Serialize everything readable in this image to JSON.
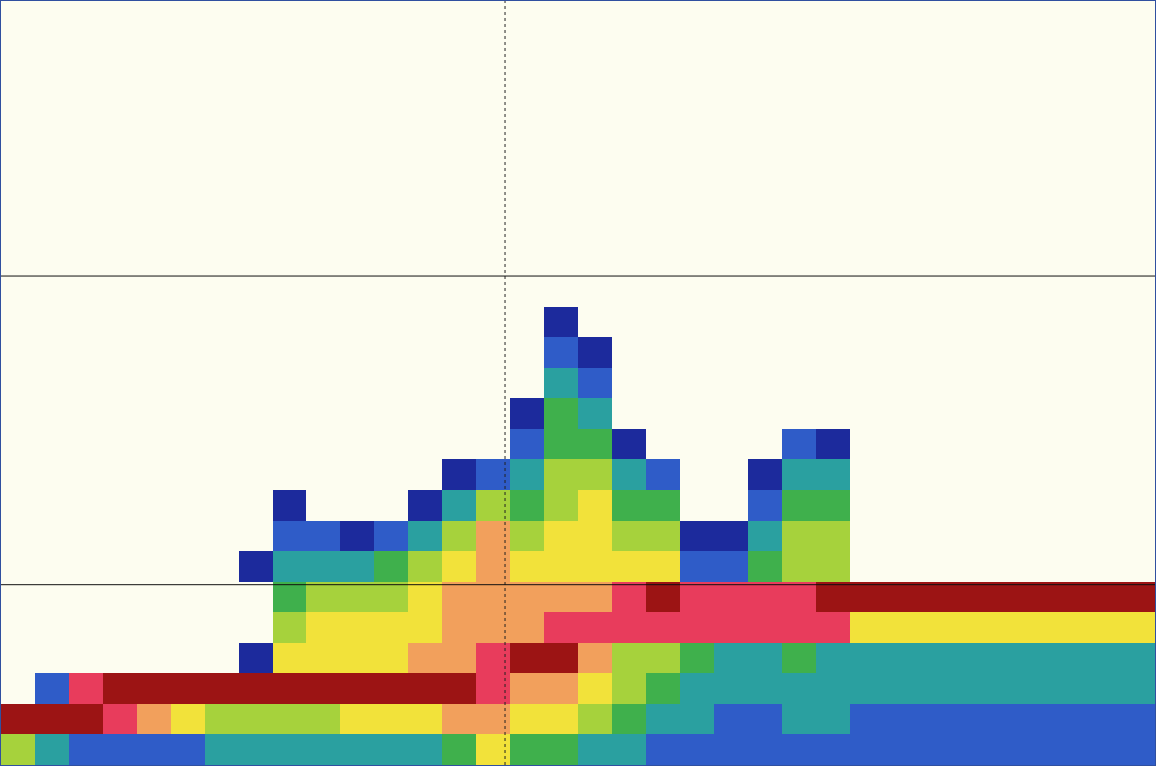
{
  "chart_data": {
    "type": "heatmap",
    "tick_labels": false,
    "grid": true,
    "x": [
      0.5,
      1.5,
      2.5,
      3.5,
      4.5,
      5.5,
      6.5,
      7.5,
      8.5,
      9.5,
      10.5,
      11.5,
      12.5,
      13.5,
      14.5,
      15.5,
      16.5,
      17.5,
      18.5,
      19.5,
      20.5,
      21.5,
      22.5,
      23.5,
      24.5,
      25.5,
      26.5,
      27.5,
      28.5,
      29.5,
      30.5,
      31.5,
      32.5,
      33.5
    ],
    "y": [
      0.5,
      1.5,
      2.5,
      3.5,
      4.5,
      5.5,
      6.5,
      7.5,
      8.5,
      9.5,
      10.5,
      11.5,
      12.5,
      13.5,
      14.5,
      15.5,
      16.5,
      17.5,
      18.5,
      19.5,
      20.5,
      21.5,
      22.5,
      23.5,
      24.5
    ],
    "xlim": [
      0,
      34
    ],
    "ylim": [
      25,
      0
    ],
    "xticks": [
      14.85
    ],
    "yticks": [
      9,
      19.1
    ],
    "zlim": [
      0,
      9
    ],
    "cells": [
      [
        0,
        0,
        0,
        0,
        0,
        0,
        0,
        0,
        0,
        0,
        0,
        0,
        0,
        0,
        0,
        0,
        0,
        0,
        0,
        0,
        0,
        0,
        0,
        0,
        0,
        0,
        0,
        0,
        0,
        0,
        0,
        0,
        0,
        0
      ],
      [
        0,
        0,
        0,
        0,
        0,
        0,
        0,
        0,
        0,
        0,
        0,
        0,
        0,
        0,
        0,
        0,
        0,
        0,
        0,
        0,
        0,
        0,
        0,
        0,
        0,
        0,
        0,
        0,
        0,
        0,
        0,
        0,
        0,
        0
      ],
      [
        0,
        0,
        0,
        0,
        0,
        0,
        0,
        0,
        0,
        0,
        0,
        0,
        0,
        0,
        0,
        0,
        0,
        0,
        0,
        0,
        0,
        0,
        0,
        0,
        0,
        0,
        0,
        0,
        0,
        0,
        0,
        0,
        0,
        0
      ],
      [
        0,
        0,
        0,
        0,
        0,
        0,
        0,
        0,
        0,
        0,
        0,
        0,
        0,
        0,
        0,
        0,
        0,
        0,
        0,
        0,
        0,
        0,
        0,
        0,
        0,
        0,
        0,
        0,
        0,
        0,
        0,
        0,
        0,
        0
      ],
      [
        0,
        0,
        0,
        0,
        0,
        0,
        0,
        0,
        0,
        0,
        0,
        0,
        0,
        0,
        0,
        0,
        0,
        0,
        0,
        0,
        0,
        0,
        0,
        0,
        0,
        0,
        0,
        0,
        0,
        0,
        0,
        0,
        0,
        0
      ],
      [
        0,
        0,
        0,
        0,
        0,
        0,
        0,
        0,
        0,
        0,
        0,
        0,
        0,
        0,
        0,
        0,
        0,
        0,
        0,
        0,
        0,
        0,
        0,
        0,
        0,
        0,
        0,
        0,
        0,
        0,
        0,
        0,
        0,
        0
      ],
      [
        0,
        0,
        0,
        0,
        0,
        0,
        0,
        0,
        0,
        0,
        0,
        0,
        0,
        0,
        0,
        0,
        0,
        0,
        0,
        0,
        0,
        0,
        0,
        0,
        0,
        0,
        0,
        0,
        0,
        0,
        0,
        0,
        0,
        0
      ],
      [
        0,
        0,
        0,
        0,
        0,
        0,
        0,
        0,
        0,
        0,
        0,
        0,
        0,
        0,
        0,
        0,
        0,
        0,
        0,
        0,
        0,
        0,
        0,
        0,
        0,
        0,
        0,
        0,
        0,
        0,
        0,
        0,
        0,
        0
      ],
      [
        0,
        0,
        0,
        0,
        0,
        0,
        0,
        0,
        0,
        0,
        0,
        0,
        0,
        0,
        0,
        0,
        0,
        0,
        0,
        0,
        0,
        0,
        0,
        0,
        0,
        0,
        0,
        0,
        0,
        0,
        0,
        0,
        0,
        0
      ],
      [
        0,
        0,
        0,
        0,
        0,
        0,
        0,
        0,
        0,
        0,
        0,
        0,
        0,
        0,
        0,
        0,
        0,
        0,
        0,
        0,
        0,
        0,
        0,
        0,
        0,
        0,
        0,
        0,
        0,
        0,
        0,
        0,
        0,
        0
      ],
      [
        0,
        0,
        0,
        0,
        0,
        0,
        0,
        0,
        0,
        0,
        0,
        0,
        0,
        0,
        0,
        0,
        1,
        0,
        0,
        0,
        0,
        0,
        0,
        0,
        0,
        0,
        0,
        0,
        0,
        0,
        0,
        0,
        0,
        0
      ],
      [
        0,
        0,
        0,
        0,
        0,
        0,
        0,
        0,
        0,
        0,
        0,
        0,
        0,
        0,
        0,
        0,
        2,
        1,
        0,
        0,
        0,
        0,
        0,
        0,
        0,
        0,
        0,
        0,
        0,
        0,
        0,
        0,
        0,
        0
      ],
      [
        0,
        0,
        0,
        0,
        0,
        0,
        0,
        0,
        0,
        0,
        0,
        0,
        0,
        0,
        0,
        0,
        3,
        2,
        0,
        0,
        0,
        0,
        0,
        0,
        0,
        0,
        0,
        0,
        0,
        0,
        0,
        0,
        0,
        0
      ],
      [
        0,
        0,
        0,
        0,
        0,
        0,
        0,
        0,
        0,
        0,
        0,
        0,
        0,
        0,
        0,
        1,
        4,
        3,
        0,
        0,
        0,
        0,
        0,
        0,
        0,
        0,
        0,
        0,
        0,
        0,
        0,
        0,
        0,
        0
      ],
      [
        0,
        0,
        0,
        0,
        0,
        0,
        0,
        0,
        0,
        0,
        0,
        0,
        0,
        0,
        0,
        2,
        4,
        4,
        1,
        0,
        0,
        0,
        0,
        2,
        1,
        0,
        0,
        0,
        0,
        0,
        0,
        0,
        0,
        0
      ],
      [
        0,
        0,
        0,
        0,
        0,
        0,
        0,
        0,
        0,
        0,
        0,
        0,
        0,
        1,
        2,
        3,
        5,
        5,
        3,
        2,
        0,
        0,
        1,
        3,
        3,
        0,
        0,
        0,
        0,
        0,
        0,
        0,
        0,
        0
      ],
      [
        0,
        0,
        0,
        0,
        0,
        0,
        0,
        0,
        1,
        0,
        0,
        0,
        1,
        3,
        5,
        4,
        5,
        6,
        4,
        4,
        0,
        0,
        2,
        4,
        4,
        0,
        0,
        0,
        0,
        0,
        0,
        0,
        0,
        0
      ],
      [
        0,
        0,
        0,
        0,
        0,
        0,
        0,
        0,
        2,
        2,
        1,
        2,
        3,
        5,
        7,
        5,
        6,
        6,
        5,
        5,
        1,
        1,
        3,
        5,
        5,
        0,
        0,
        0,
        0,
        0,
        0,
        0,
        0,
        0
      ],
      [
        0,
        0,
        0,
        0,
        0,
        0,
        0,
        1,
        3,
        3,
        3,
        4,
        5,
        6,
        7,
        6,
        6,
        6,
        6,
        6,
        2,
        2,
        4,
        5,
        5,
        0,
        0,
        0,
        0,
        0,
        0,
        0,
        0,
        0
      ],
      [
        0,
        0,
        0,
        0,
        0,
        0,
        0,
        0,
        4,
        5,
        5,
        5,
        6,
        7,
        7,
        7,
        7,
        7,
        8,
        9,
        8,
        8,
        8,
        8,
        9,
        9,
        9,
        9,
        9,
        9,
        9,
        9,
        9,
        9
      ],
      [
        0,
        0,
        0,
        0,
        0,
        0,
        0,
        0,
        5,
        6,
        6,
        6,
        6,
        7,
        7,
        7,
        8,
        8,
        8,
        8,
        8,
        8,
        8,
        8,
        8,
        6,
        6,
        6,
        6,
        6,
        6,
        6,
        6,
        6
      ],
      [
        0,
        0,
        0,
        0,
        0,
        0,
        0,
        1,
        6,
        6,
        6,
        6,
        7,
        7,
        8,
        9,
        9,
        7,
        5,
        5,
        4,
        3,
        3,
        4,
        3,
        3,
        3,
        3,
        3,
        3,
        3,
        3,
        3,
        3
      ],
      [
        0,
        2,
        8,
        9,
        9,
        9,
        9,
        9,
        9,
        9,
        9,
        9,
        9,
        9,
        8,
        7,
        7,
        6,
        5,
        4,
        3,
        3,
        3,
        3,
        3,
        3,
        3,
        3,
        3,
        3,
        3,
        3,
        3,
        3
      ],
      [
        9,
        9,
        9,
        8,
        7,
        6,
        5,
        5,
        5,
        5,
        6,
        6,
        6,
        7,
        7,
        6,
        6,
        5,
        4,
        3,
        3,
        2,
        2,
        3,
        3,
        2,
        2,
        2,
        2,
        2,
        2,
        2,
        2,
        2
      ],
      [
        5,
        3,
        2,
        2,
        2,
        2,
        3,
        3,
        3,
        3,
        3,
        3,
        3,
        4,
        6,
        4,
        4,
        3,
        3,
        2,
        2,
        2,
        2,
        2,
        2,
        2,
        2,
        2,
        2,
        2,
        2,
        2,
        2,
        2
      ]
    ]
  }
}
